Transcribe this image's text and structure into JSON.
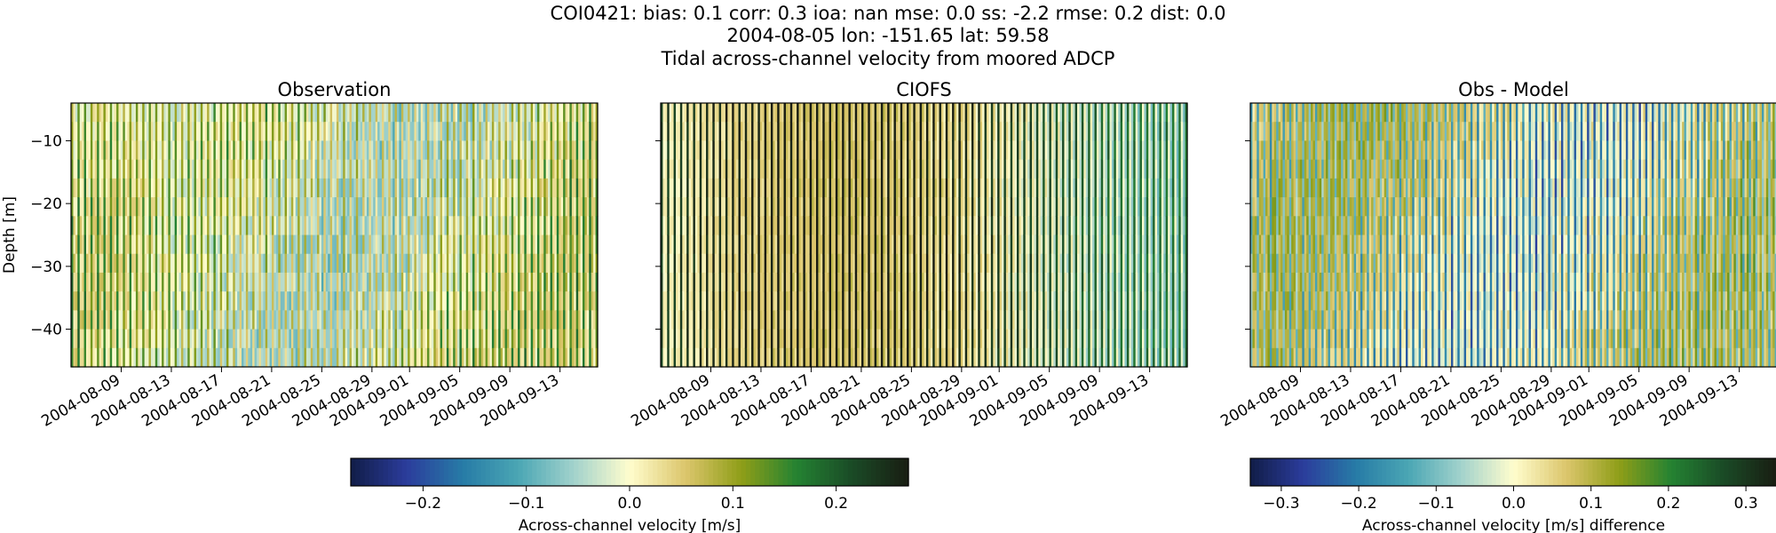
{
  "figure": {
    "title_lines": [
      "COI0421: bias: 0.1  corr: 0.3  ioa: nan  mse: 0.0  ss: -2.2  rmse: 0.2  dist: 0.0",
      "2004-08-05 lon: -151.65 lat: 59.58",
      "Tidal across-channel velocity from moored ADCP"
    ]
  },
  "chart_data": [
    {
      "type": "heatmap",
      "title": "Observation",
      "ylabel": "Depth [m]",
      "yticks": [
        -10,
        -20,
        -30,
        -40
      ],
      "ylim": [
        -46,
        -4
      ],
      "xtick_labels": [
        "2004-08-09",
        "2004-08-13",
        "2004-08-17",
        "2004-08-21",
        "2004-08-25",
        "2004-08-29",
        "2004-09-01",
        "2004-09-05",
        "2004-09-09",
        "2004-09-13"
      ],
      "xlim": [
        "2004-08-05",
        "2004-09-16"
      ],
      "colorbar": "velocity",
      "tidal_amplitude": 0.2,
      "pattern": "observation"
    },
    {
      "type": "heatmap",
      "title": "CIOFS",
      "ylabel": "",
      "yticks": [
        -10,
        -20,
        -30,
        -40
      ],
      "ylim": [
        -46,
        -4
      ],
      "xtick_labels": [
        "2004-08-09",
        "2004-08-13",
        "2004-08-17",
        "2004-08-21",
        "2004-08-25",
        "2004-08-29",
        "2004-09-01",
        "2004-09-05",
        "2004-09-09",
        "2004-09-13"
      ],
      "xlim": [
        "2004-08-05",
        "2004-09-16"
      ],
      "colorbar": "velocity",
      "tidal_amplitude": 0.25,
      "pattern": "model"
    },
    {
      "type": "heatmap",
      "title": "Obs - Model",
      "ylabel": "",
      "yticks": [
        -10,
        -20,
        -30,
        -40
      ],
      "ylim": [
        -46,
        -4
      ],
      "xtick_labels": [
        "2004-08-09",
        "2004-08-13",
        "2004-08-17",
        "2004-08-21",
        "2004-08-25",
        "2004-08-29",
        "2004-09-01",
        "2004-09-05",
        "2004-09-09",
        "2004-09-13"
      ],
      "xlim": [
        "2004-08-05",
        "2004-09-16"
      ],
      "colorbar": "difference",
      "tidal_amplitude": 0.3,
      "pattern": "difference"
    }
  ],
  "colorbars": {
    "velocity": {
      "label": "Across-channel velocity [m/s]",
      "range": [
        -0.27,
        0.27
      ],
      "ticks": [
        -0.2,
        -0.1,
        0.0,
        0.1,
        0.2
      ],
      "tick_labels": [
        "−0.2",
        "−0.1",
        "0.0",
        "0.1",
        "0.2"
      ]
    },
    "difference": {
      "label": "Across-channel velocity [m/s] difference",
      "range": [
        -0.34,
        0.34
      ],
      "ticks": [
        -0.3,
        -0.2,
        -0.1,
        0.0,
        0.1,
        0.2,
        0.3
      ],
      "tick_labels": [
        "−0.3",
        "−0.2",
        "−0.1",
        "0.0",
        "0.1",
        "0.2",
        "0.3"
      ]
    }
  },
  "colormap": {
    "name": "delta",
    "stops": [
      "#111d47",
      "#2b3c9c",
      "#277ba6",
      "#4aa6b4",
      "#a2d2cc",
      "#fffdcd",
      "#dcc66c",
      "#8f9e18",
      "#248232",
      "#1a4a26",
      "#191d12"
    ]
  }
}
